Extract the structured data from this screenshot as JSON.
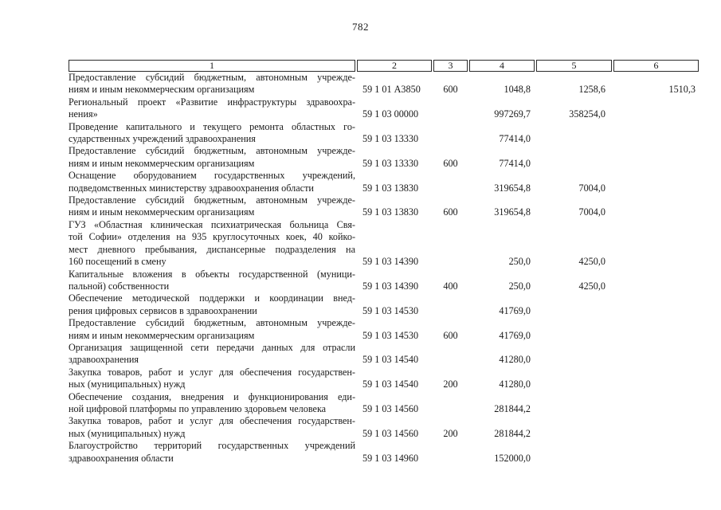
{
  "page": {
    "number": "782"
  },
  "colors": {
    "background": "#ffffff",
    "text": "#1a1a1a",
    "table_border": "#2b2b2b"
  },
  "table": {
    "header": [
      "1",
      "2",
      "3",
      "4",
      "5",
      "6"
    ],
    "rows": [
      {
        "name": "Предоставление субсидий бюджетным, автономным учрежде-\nниям и иным некоммерческим организациям",
        "code": "59 1 01 А3850",
        "expense_type": "600",
        "amount_1": "1048,8",
        "amount_2": "1258,6",
        "amount_3": "1510,3"
      },
      {
        "name": "Региональный проект «Развитие инфраструктуры здравоохра-\nнения»",
        "code": "59 1 03 00000",
        "expense_type": "",
        "amount_1": "997269,7",
        "amount_2": "358254,0",
        "amount_3": ""
      },
      {
        "name": "Проведение капитального и текущего ремонта областных го-\nсударственных учреждений здравоохранения",
        "code": "59 1 03 13330",
        "expense_type": "",
        "amount_1": "77414,0",
        "amount_2": "",
        "amount_3": ""
      },
      {
        "name": "Предоставление субсидий бюджетным, автономным учрежде-\nниям и иным некоммерческим организациям",
        "code": "59 1 03 13330",
        "expense_type": "600",
        "amount_1": "77414,0",
        "amount_2": "",
        "amount_3": ""
      },
      {
        "name": "Оснащение оборудованием государственных учреждений,\nподведомственных министерству здравоохранения области",
        "code": "59 1 03 13830",
        "expense_type": "",
        "amount_1": "319654,8",
        "amount_2": "7004,0",
        "amount_3": ""
      },
      {
        "name": "Предоставление субсидий бюджетным, автономным учрежде-\nниям и иным некоммерческим организациям",
        "code": "59 1 03 13830",
        "expense_type": "600",
        "amount_1": "319654,8",
        "amount_2": "7004,0",
        "amount_3": ""
      },
      {
        "name": "ГУЗ «Областная клиническая психиатрическая больница Свя-\nтой Софии» отделения на 935 круглосуточных коек, 40 койко-\nмест дневного пребывания, диспансерные подразделения на\n160 посещений в смену",
        "code": "59 1 03 14390",
        "expense_type": "",
        "amount_1": "250,0",
        "amount_2": "4250,0",
        "amount_3": ""
      },
      {
        "name": "Капитальные вложения в объекты государственной (муници-\nпальной) собственности",
        "code": "59 1 03 14390",
        "expense_type": "400",
        "amount_1": "250,0",
        "amount_2": "4250,0",
        "amount_3": ""
      },
      {
        "name": "Обеспечение методической поддержки и координации внед-\nрения цифровых сервисов в здравоохранении",
        "code": "59 1 03 14530",
        "expense_type": "",
        "amount_1": "41769,0",
        "amount_2": "",
        "amount_3": ""
      },
      {
        "name": "Предоставление субсидий бюджетным, автономным учрежде-\nниям и иным некоммерческим организациям",
        "code": "59 1 03 14530",
        "expense_type": "600",
        "amount_1": "41769,0",
        "amount_2": "",
        "amount_3": ""
      },
      {
        "name": "Организация защищенной сети передачи данных для отрасли\nздравоохранения",
        "code": "59 1 03 14540",
        "expense_type": "",
        "amount_1": "41280,0",
        "amount_2": "",
        "amount_3": ""
      },
      {
        "name": "Закупка товаров, работ и услуг для обеспечения государствен-\nных (муниципальных) нужд",
        "code": "59 1 03 14540",
        "expense_type": "200",
        "amount_1": "41280,0",
        "amount_2": "",
        "amount_3": ""
      },
      {
        "name": "Обеспечение создания, внедрения и функционирования еди-\nной цифровой платформы по управлению здоровьем человека",
        "code": "59 1 03 14560",
        "expense_type": "",
        "amount_1": "281844,2",
        "amount_2": "",
        "amount_3": ""
      },
      {
        "name": "Закупка товаров, работ и услуг для обеспечения государствен-\nных (муниципальных) нужд",
        "code": "59 1 03 14560",
        "expense_type": "200",
        "amount_1": "281844,2",
        "amount_2": "",
        "amount_3": ""
      },
      {
        "name": "Благоустройство территорий государственных учреждений\nздравоохранения области",
        "code": "59 1 03 14960",
        "expense_type": "",
        "amount_1": "152000,0",
        "amount_2": "",
        "amount_3": ""
      }
    ]
  }
}
